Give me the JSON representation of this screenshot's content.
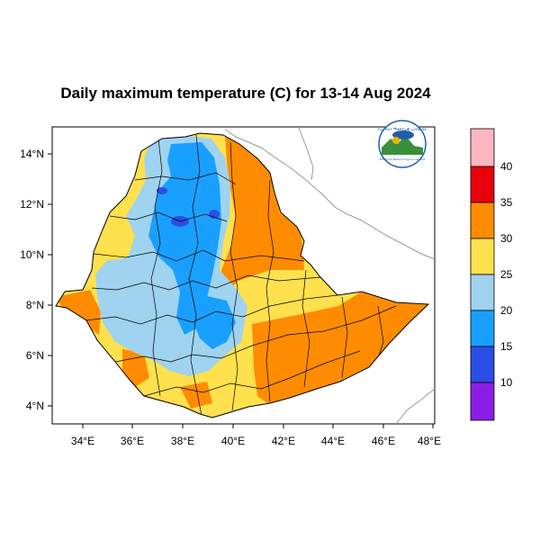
{
  "title": "Daily maximum temperature (C) for 13-14 Aug 2024",
  "map": {
    "region": "Ethiopia",
    "lon_range": [
      33,
      48.2
    ],
    "lat_range": [
      3.2,
      15
    ],
    "lon_ticks": [
      "34°E",
      "36°E",
      "38°E",
      "40°E",
      "42°E",
      "44°E",
      "46°E",
      "48°E"
    ],
    "lat_ticks": [
      "14°N",
      "12°N",
      "10°N",
      "8°N",
      "6°N",
      "4°N"
    ]
  },
  "colorbar": {
    "labels": [
      "40",
      "35",
      "30",
      "25",
      "20",
      "15",
      "10"
    ],
    "colors": [
      "#ffb6c1",
      "#e8000b",
      "#ff8c00",
      "#ffe14d",
      "#9fd3f0",
      "#19a0ff",
      "#2b4ee6",
      "#8a1ee6"
    ]
  },
  "logo": {
    "text_top": "የኢትዮጵያ ሚቲዎሮሎጂ ኢንስቲትዩት",
    "text_bottom": "Ethiopian Meteorological Institute"
  }
}
